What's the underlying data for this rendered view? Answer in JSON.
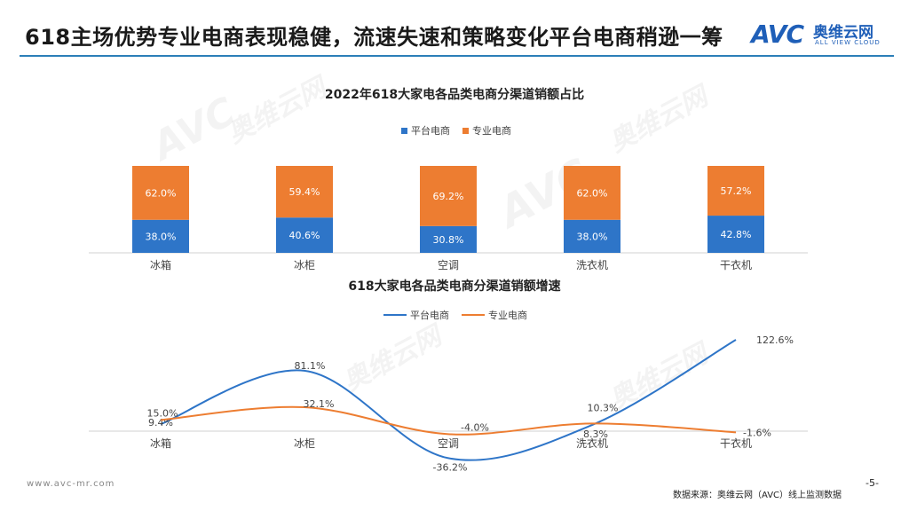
{
  "header": {
    "title": "618主场优势专业电商表现稳健，流速失速和策略变化平台电商稍逊一筹"
  },
  "logo": {
    "mark": "AVC",
    "cn": "奥维云网",
    "en": "ALL VIEW CLOUD"
  },
  "colors": {
    "platform": "#2e75c8",
    "professional": "#ed7d31",
    "rule": "#2c7fb8"
  },
  "chart_data": [
    {
      "type": "bar",
      "stacked": true,
      "title": "2022年618大家电各品类电商分渠道销额占比",
      "categories": [
        "冰箱",
        "冰柜",
        "空调",
        "洗衣机",
        "干衣机"
      ],
      "series": [
        {
          "name": "平台电商",
          "values": [
            38.0,
            40.6,
            30.8,
            38.0,
            42.8
          ],
          "labels": [
            "38.0%",
            "40.6%",
            "30.8%",
            "38.0%",
            "42.8%"
          ]
        },
        {
          "name": "专业电商",
          "values": [
            62.0,
            59.4,
            69.2,
            62.0,
            57.2
          ],
          "labels": [
            "62.0%",
            "59.4%",
            "69.2%",
            "62.0%",
            "57.2%"
          ]
        }
      ],
      "ylim": [
        0,
        100
      ],
      "legend": "top-center"
    },
    {
      "type": "line",
      "smooth": true,
      "title": "618大家电各品类电商分渠道销额增速",
      "categories": [
        "冰箱",
        "冰柜",
        "空调",
        "洗衣机",
        "干衣机"
      ],
      "series": [
        {
          "name": "平台电商",
          "values": [
            9.4,
            81.1,
            -36.2,
            8.3,
            122.6
          ],
          "labels": [
            "9.4%",
            "81.1%",
            "-36.2%",
            "8.3%",
            "122.6%"
          ]
        },
        {
          "name": "专业电商",
          "values": [
            15.0,
            32.1,
            -4.0,
            10.3,
            -1.6
          ],
          "labels": [
            "15.0%",
            "32.1%",
            "-4.0%",
            "10.3%",
            "-1.6%"
          ]
        }
      ],
      "legend": "top-center"
    }
  ],
  "footer": {
    "url": "www.avc-mr.com",
    "source": "数据来源：奥维云网（AVC）线上监测数据",
    "page": "-5-"
  },
  "watermark": {
    "cn": "奥维云网",
    "en": "ALL VIEW CLOUD",
    "mark": "AVC"
  }
}
